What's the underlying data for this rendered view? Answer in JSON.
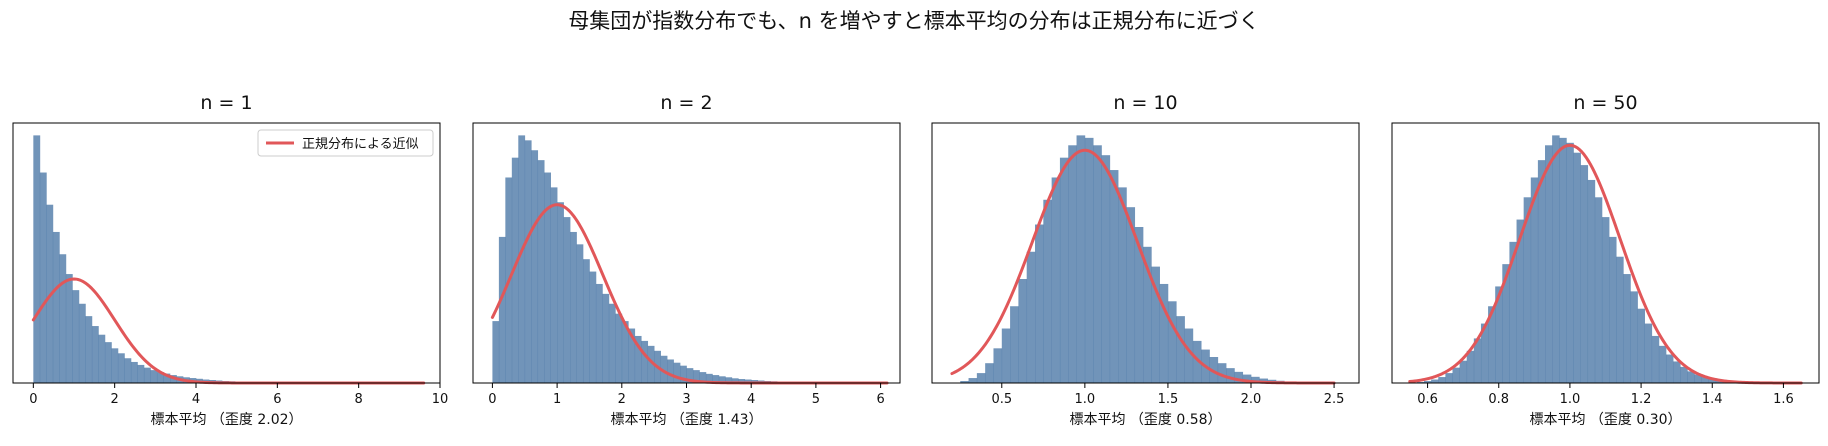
{
  "suptitle": "母集団が指数分布でも、n を増やすと標本平均の分布は正規分布に近づく",
  "legend_label": "正規分布による近似",
  "colors": {
    "hist": "#4e79a7",
    "curve": "#e15759"
  },
  "chart_data": [
    {
      "type": "bar",
      "title": "n = 1",
      "xlabel": "標本平均 （歪度 2.02）",
      "n": 1,
      "skewness": 2.02,
      "xlim": [
        -0.5,
        10.0
      ],
      "xticks": [
        0,
        2,
        4,
        6,
        8,
        10
      ],
      "ylim_relative": [
        0,
        1.05
      ],
      "histogram": {
        "bin_start": 0.0,
        "bin_width": 0.16,
        "heights": [
          1.0,
          0.85,
          0.72,
          0.61,
          0.52,
          0.44,
          0.375,
          0.32,
          0.27,
          0.23,
          0.195,
          0.165,
          0.14,
          0.12,
          0.1,
          0.085,
          0.073,
          0.062,
          0.052,
          0.044,
          0.038,
          0.032,
          0.027,
          0.023,
          0.02,
          0.017,
          0.014,
          0.012,
          0.01,
          0.008,
          0.007,
          0.006,
          0.005,
          0.004,
          0.0035,
          0.003,
          0.0025,
          0.002,
          0.0017,
          0.0014,
          0.0012,
          0.001,
          0.0009,
          0.0008,
          0.0007,
          0.0006,
          0.0005,
          0.0004,
          0.0004,
          0.0003,
          0.0003,
          0.0002,
          0.0002,
          0.0002,
          0.0001,
          0.0001,
          0.0001,
          0.0001,
          0.0001,
          0.0001
        ]
      },
      "normal_fit": {
        "mean": 1.0,
        "sd": 1.0,
        "x_range": [
          0.0,
          9.6
        ],
        "peak_relative": 0.42
      }
    },
    {
      "type": "bar",
      "title": "n = 2",
      "xlabel": "標本平均 （歪度 1.43）",
      "n": 2,
      "skewness": 1.43,
      "xlim": [
        -0.3,
        6.3
      ],
      "xticks": [
        0,
        1,
        2,
        3,
        4,
        5,
        6
      ],
      "ylim_relative": [
        0,
        1.05
      ],
      "histogram": {
        "bin_start": 0.0,
        "bin_width": 0.1,
        "heights": [
          0.25,
          0.59,
          0.83,
          0.91,
          1.0,
          0.98,
          0.94,
          0.9,
          0.85,
          0.79,
          0.73,
          0.67,
          0.61,
          0.56,
          0.5,
          0.45,
          0.4,
          0.36,
          0.32,
          0.28,
          0.25,
          0.22,
          0.19,
          0.17,
          0.15,
          0.13,
          0.11,
          0.095,
          0.082,
          0.07,
          0.06,
          0.052,
          0.044,
          0.037,
          0.032,
          0.027,
          0.023,
          0.019,
          0.016,
          0.014,
          0.012,
          0.01,
          0.008,
          0.007,
          0.006,
          0.005,
          0.004,
          0.0035,
          0.003,
          0.0025,
          0.002,
          0.0017,
          0.0014,
          0.0012,
          0.001,
          0.0008,
          0.0006,
          0.0005,
          0.0004,
          0.0003,
          0.0002,
          0.0002
        ]
      },
      "normal_fit": {
        "mean": 1.0,
        "sd": 0.707,
        "x_range": [
          0.0,
          6.1
        ],
        "peak_relative": 0.72
      }
    },
    {
      "type": "bar",
      "title": "n = 10",
      "xlabel": "標本平均 （歪度 0.58）",
      "n": 10,
      "skewness": 0.58,
      "xlim": [
        0.08,
        2.65
      ],
      "xticks": [
        0.5,
        1.0,
        1.5,
        2.0,
        2.5
      ],
      "ylim_relative": [
        0,
        1.05
      ],
      "histogram": {
        "bin_start": 0.2,
        "bin_width": 0.05,
        "heights": [
          0.002,
          0.008,
          0.02,
          0.04,
          0.08,
          0.14,
          0.22,
          0.31,
          0.42,
          0.53,
          0.64,
          0.74,
          0.83,
          0.91,
          0.96,
          1.0,
          0.99,
          0.96,
          0.92,
          0.86,
          0.79,
          0.71,
          0.63,
          0.55,
          0.47,
          0.4,
          0.33,
          0.27,
          0.22,
          0.17,
          0.135,
          0.105,
          0.08,
          0.06,
          0.045,
          0.034,
          0.025,
          0.018,
          0.013,
          0.009,
          0.006,
          0.004,
          0.003,
          0.002,
          0.0013,
          0.0008,
          0.0005,
          0.0003
        ]
      },
      "normal_fit": {
        "mean": 1.0,
        "sd": 0.316,
        "x_range": [
          0.2,
          2.5
        ],
        "peak_relative": 0.94
      }
    },
    {
      "type": "bar",
      "title": "n = 50",
      "xlabel": "標本平均 （歪度 0.30）",
      "n": 50,
      "skewness": 0.3,
      "xlim": [
        0.5,
        1.7
      ],
      "xticks": [
        0.6,
        0.8,
        1.0,
        1.2,
        1.4,
        1.6
      ],
      "ylim_relative": [
        0,
        1.05
      ],
      "histogram": {
        "bin_start": 0.55,
        "bin_width": 0.02,
        "heights": [
          0.002,
          0.004,
          0.008,
          0.014,
          0.024,
          0.04,
          0.062,
          0.09,
          0.13,
          0.18,
          0.24,
          0.31,
          0.39,
          0.48,
          0.57,
          0.66,
          0.75,
          0.83,
          0.9,
          0.96,
          1.0,
          0.99,
          0.97,
          0.93,
          0.88,
          0.82,
          0.75,
          0.67,
          0.59,
          0.51,
          0.44,
          0.37,
          0.3,
          0.24,
          0.19,
          0.15,
          0.115,
          0.087,
          0.065,
          0.047,
          0.034,
          0.024,
          0.017,
          0.012,
          0.008,
          0.005,
          0.0035,
          0.002,
          0.0013,
          0.0008,
          0.0005
        ]
      },
      "normal_fit": {
        "mean": 1.0,
        "sd": 0.141,
        "x_range": [
          0.55,
          1.65
        ],
        "peak_relative": 0.96
      }
    }
  ]
}
